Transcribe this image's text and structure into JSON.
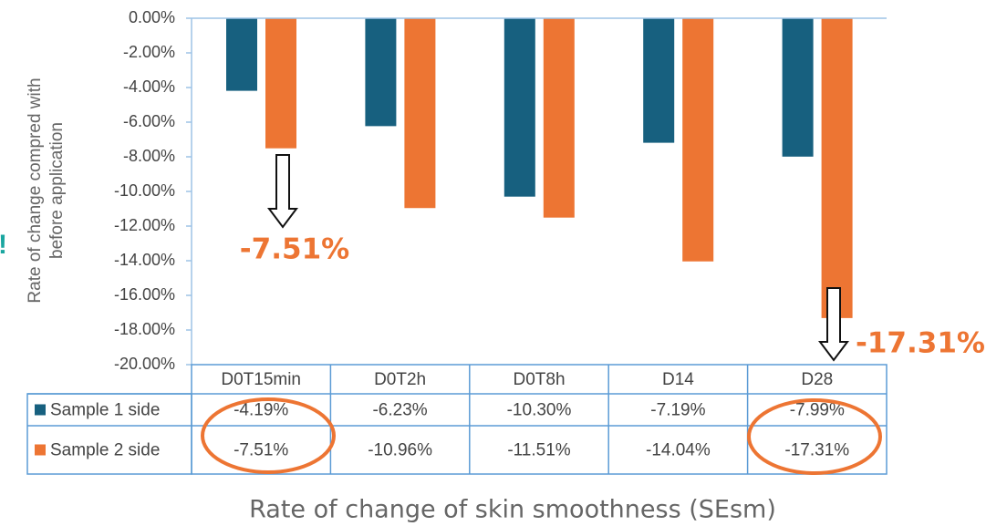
{
  "chart_data": {
    "type": "bar",
    "y_label_lines": [
      "Rate of change compred with",
      "before application"
    ],
    "x_title": "Rate of change of skin smoothness (SEsm)",
    "categories": [
      "D0T15min",
      "D0T2h",
      "D0T8h",
      "D14",
      "D28"
    ],
    "series": [
      {
        "name": "Sample 1 side",
        "color": "#17607f",
        "values": [
          -4.19,
          -6.23,
          -10.3,
          -7.19,
          -7.99
        ],
        "value_labels": [
          "-4.19%",
          "-6.23%",
          "-10.30%",
          "-7.19%",
          "-7.99%"
        ]
      },
      {
        "name": "Sample 2 side",
        "color": "#ed7533",
        "values": [
          -7.51,
          -10.96,
          -11.51,
          -14.04,
          -17.31
        ],
        "value_labels": [
          "-7.51%",
          "-10.96%",
          "-11.51%",
          "-14.04%",
          "-17.31%"
        ]
      }
    ],
    "ylim": [
      -20,
      0
    ],
    "yticks": [
      {
        "value": 0,
        "label": "0.00%"
      },
      {
        "value": -2,
        "label": "-2.00%"
      },
      {
        "value": -4,
        "label": "-4.00%"
      },
      {
        "value": -6,
        "label": "-6.00%"
      },
      {
        "value": -8,
        "label": "-8.00%"
      },
      {
        "value": -10,
        "label": "-10.00%"
      },
      {
        "value": -12,
        "label": "-12.00%"
      },
      {
        "value": -14,
        "label": "-14.00%"
      },
      {
        "value": -16,
        "label": "-16.00%"
      },
      {
        "value": -18,
        "label": "-18.00%"
      },
      {
        "value": -20,
        "label": "-20.00%"
      }
    ],
    "annotations": [
      "-7.51%",
      "-17.31%",
      "!"
    ],
    "grid": false
  }
}
